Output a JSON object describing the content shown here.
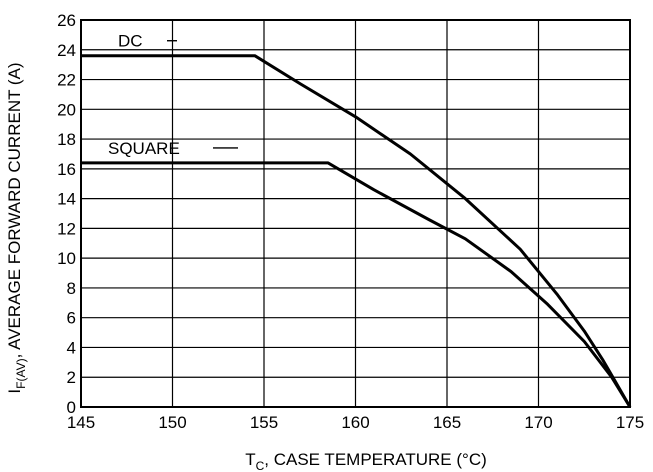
{
  "chart_data": {
    "type": "line",
    "xlabel": {
      "main": "T",
      "sub": "C",
      "rest": ", CASE TEMPERATURE (°C)"
    },
    "ylabel": {
      "main": "I",
      "sub": "F(AV)",
      "rest": ", AVERAGE FORWARD CURRENT (A)"
    },
    "xlim": [
      145,
      175
    ],
    "ylim": [
      0,
      26
    ],
    "x_ticks": [
      "145",
      "150",
      "155",
      "160",
      "165",
      "170",
      "175"
    ],
    "y_ticks": [
      "0",
      "2",
      "4",
      "6",
      "8",
      "10",
      "12",
      "14",
      "16",
      "18",
      "20",
      "22",
      "24",
      "26"
    ],
    "grid": true,
    "series": [
      {
        "name": "DC",
        "points": [
          [
            145,
            23.6
          ],
          [
            154.5,
            23.6
          ],
          [
            157,
            21.7
          ],
          [
            160,
            19.5
          ],
          [
            163,
            17.0
          ],
          [
            166,
            14.0
          ],
          [
            169,
            10.6
          ],
          [
            171,
            7.6
          ],
          [
            172.5,
            5.1
          ],
          [
            173.5,
            3.2
          ],
          [
            174.3,
            1.5
          ],
          [
            175,
            0
          ]
        ]
      },
      {
        "name": "SQUARE",
        "points": [
          [
            145,
            16.4
          ],
          [
            158.5,
            16.4
          ],
          [
            161,
            14.6
          ],
          [
            164,
            12.6
          ],
          [
            166,
            11.3
          ],
          [
            168.5,
            9.1
          ],
          [
            170.5,
            6.9
          ],
          [
            172.5,
            4.4
          ],
          [
            174,
            2.0
          ],
          [
            175,
            0
          ]
        ]
      }
    ]
  }
}
